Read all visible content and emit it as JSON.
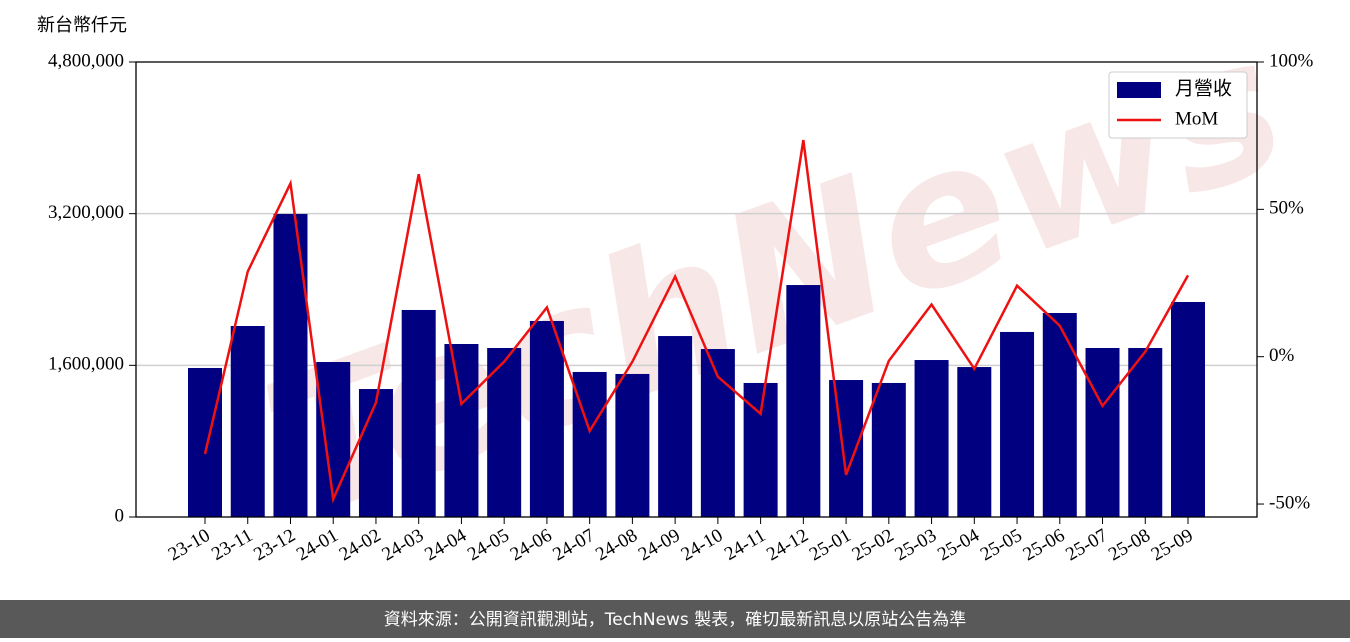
{
  "chart_data": {
    "type": "bar_line",
    "y_axis_label": "新台幣仟元",
    "watermark": "TechNews",
    "footer": "資料來源：公開資訊觀測站，TechNews 製表，確切最新訊息以原站公告為準",
    "categories": [
      "23-10",
      "23-11",
      "23-12",
      "24-01",
      "24-02",
      "24-03",
      "24-04",
      "24-05",
      "24-06",
      "24-07",
      "24-08",
      "24-09",
      "24-10",
      "24-11",
      "24-12",
      "25-01",
      "25-02",
      "25-03",
      "25-04",
      "25-05",
      "25-06",
      "25-07",
      "25-08",
      "25-09"
    ],
    "series": [
      {
        "name": "月營收",
        "color": "#000080",
        "kind": "bar",
        "values": [
          1572000,
          2015000,
          3197000,
          1635000,
          1350000,
          2184000,
          1825000,
          1783000,
          2068000,
          1530000,
          1509000,
          1909000,
          1772000,
          1414000,
          2447000,
          1445000,
          1414000,
          1656000,
          1582000,
          1952000,
          2152000,
          1783000,
          1783000,
          2268000
        ]
      },
      {
        "name": "MoM",
        "color": "#ee1111",
        "kind": "line",
        "axis": "y2",
        "values": [
          -33,
          28.9,
          58.8,
          -48.3,
          -15.6,
          61.9,
          -16,
          -1.7,
          16.7,
          -25.2,
          -1.7,
          27.2,
          -6.8,
          -19.4,
          73.5,
          -40.1,
          -1.4,
          17.7,
          -4.1,
          24.1,
          10.5,
          -16.7,
          1.7,
          27.6
        ]
      }
    ],
    "ylim": [
      0,
      4800000
    ],
    "yticks": [
      0,
      {
        "value": 1600000,
        "label": "1,600,000"
      },
      {
        "value": 3200000,
        "label": "3,200,000"
      },
      {
        "value": 4800000,
        "label": "4,800,000"
      }
    ],
    "y2lim": [
      -54.4,
      100
    ],
    "y2ticks": [
      {
        "value": -50,
        "label": "-50%"
      },
      {
        "value": 0,
        "label": "0%"
      },
      {
        "value": 50,
        "label": "50%"
      },
      {
        "value": 100,
        "label": "100%"
      }
    ],
    "grid": true,
    "legend": "upper right"
  }
}
